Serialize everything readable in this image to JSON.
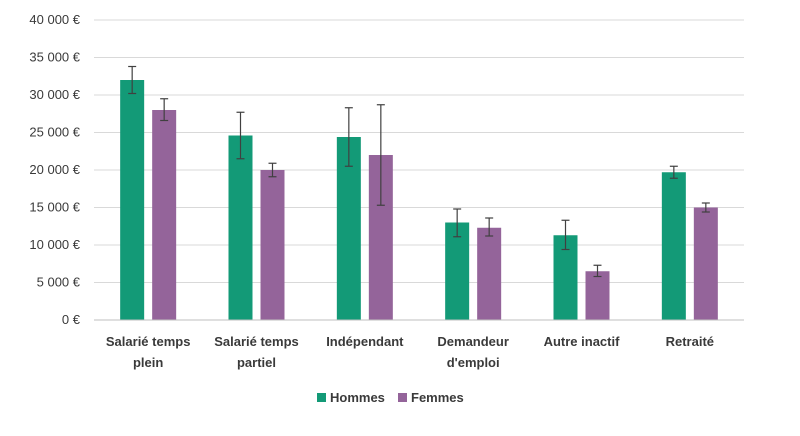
{
  "chart_data": {
    "type": "bar",
    "categories": [
      [
        "Salarié temps",
        "plein"
      ],
      [
        "Salarié temps",
        "partiel"
      ],
      [
        "Indépendant"
      ],
      [
        "Demandeur",
        "d'emploi"
      ],
      [
        "Autre inactif"
      ],
      [
        "Retraité"
      ]
    ],
    "series": [
      {
        "name": "Hommes",
        "color": "#139a77",
        "values": [
          32000,
          24600,
          24400,
          13000,
          11300,
          19700
        ],
        "error_low": [
          30200,
          21500,
          20500,
          11100,
          9400,
          18900
        ],
        "error_high": [
          33800,
          27700,
          28300,
          14800,
          13300,
          20500
        ]
      },
      {
        "name": "Femmes",
        "color": "#94649a",
        "values": [
          28000,
          20000,
          22000,
          12300,
          6500,
          15000
        ],
        "error_low": [
          26600,
          19100,
          15300,
          11200,
          5800,
          14400
        ],
        "error_high": [
          29500,
          20900,
          28700,
          13600,
          7300,
          15600
        ]
      }
    ],
    "ylim": [
      0,
      40000
    ],
    "yticks": [
      0,
      5000,
      10000,
      15000,
      20000,
      25000,
      30000,
      35000,
      40000
    ],
    "ytick_labels": [
      "0 €",
      "5 000 €",
      "10 000 €",
      "15 000 €",
      "20 000 €",
      "25 000 €",
      "30 000 €",
      "35 000 €",
      "40 000 €"
    ],
    "grid": true,
    "legend": "bottom",
    "title": "",
    "xlabel": "",
    "ylabel": ""
  }
}
